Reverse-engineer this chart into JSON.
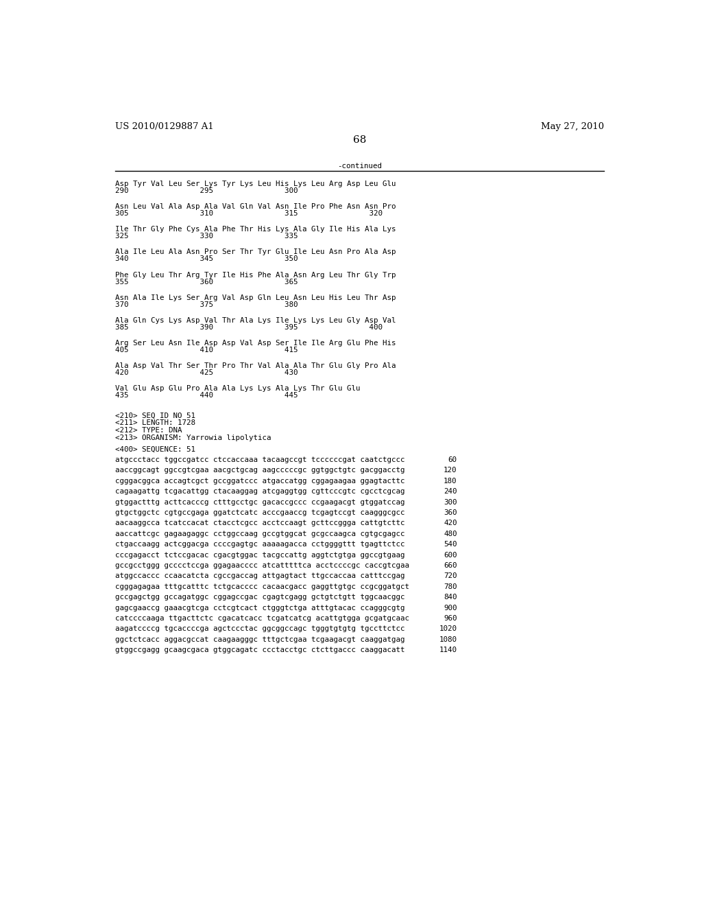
{
  "header_left": "US 2010/0129887 A1",
  "header_right": "May 27, 2010",
  "page_number": "68",
  "continued_label": "-continued",
  "background_color": "#ffffff",
  "text_color": "#000000",
  "font_size_header": 9.5,
  "font_size_body": 7.8,
  "font_size_page": 11,
  "amino_acid_lines": [
    [
      "Asp Tyr Val Leu Ser Lys Tyr Lys Leu His Lys Leu Arg Asp Leu Glu",
      "290                295                300"
    ],
    [
      "Asn Leu Val Ala Asp Ala Val Gln Val Asn Ile Pro Phe Asn Asn Pro",
      "305                310                315                320"
    ],
    [
      "Ile Thr Gly Phe Cys Ala Phe Thr His Lys Ala Gly Ile His Ala Lys",
      "325                330                335"
    ],
    [
      "Ala Ile Leu Ala Asn Pro Ser Thr Tyr Glu Ile Leu Asn Pro Ala Asp",
      "340                345                350"
    ],
    [
      "Phe Gly Leu Thr Arg Tyr Ile His Phe Ala Asn Arg Leu Thr Gly Trp",
      "355                360                365"
    ],
    [
      "Asn Ala Ile Lys Ser Arg Val Asp Gln Leu Asn Leu His Leu Thr Asp",
      "370                375                380"
    ],
    [
      "Ala Gln Cys Lys Asp Val Thr Ala Lys Ile Lys Lys Leu Gly Asp Val",
      "385                390                395                400"
    ],
    [
      "Arg Ser Leu Asn Ile Asp Asp Val Asp Ser Ile Ile Arg Glu Phe His",
      "405                410                415"
    ],
    [
      "Ala Asp Val Thr Ser Thr Pro Thr Val Ala Ala Thr Glu Gly Pro Ala",
      "420                425                430"
    ],
    [
      "Val Glu Asp Glu Pro Ala Ala Lys Lys Ala Lys Thr Glu Glu",
      "435                440                445"
    ]
  ],
  "metadata_lines": [
    "<210> SEQ ID NO 51",
    "<211> LENGTH: 1728",
    "<212> TYPE: DNA",
    "<213> ORGANISM: Yarrowia lipolytica"
  ],
  "sequence_label": "<400> SEQUENCE: 51",
  "dna_lines": [
    [
      "atgccctacc tggccgatcc ctccaccaaa tacaagccgt tccccccgat caatctgccc",
      "60"
    ],
    [
      "aaccggcagt ggccgtcgaa aacgctgcag aagcccccgc ggtggctgtc gacggacctg",
      "120"
    ],
    [
      "cgggacggca accagtcgct gccggatccc atgaccatgg cggagaagaa ggagtacttc",
      "180"
    ],
    [
      "cagaagattg tcgacattgg ctacaaggag atcgaggtgg cgttcccgtc cgcctcgcag",
      "240"
    ],
    [
      "gtggactttg acttcacccg ctttgcctgc gacaccgccc ccgaagacgt gtggatccag",
      "300"
    ],
    [
      "gtgctggctc cgtgccgaga ggatctcatc acccgaaccg tcgagtccgt caagggcgcc",
      "360"
    ],
    [
      "aacaaggcca tcatccacat ctacctcgcc acctccaagt gcttccggga cattgtcttc",
      "420"
    ],
    [
      "aaccattcgc gagaagaggc cctggccaag gccgtggcat gcgccaagca cgtgcgagcc",
      "480"
    ],
    [
      "ctgaccaagg actcggacga ccccgagtgc aaaaagacca cctggggttt tgagttctcc",
      "540"
    ],
    [
      "cccgagacct tctccgacac cgacgtggac tacgccattg aggtctgtga ggccgtgaag",
      "600"
    ],
    [
      "gccgcctggg gcccctccga ggagaacccc atcatttttca acctccccgc caccgtcgaa",
      "660"
    ],
    [
      "atggccaccc ccaacatcta cgccgaccag attgagtact ttgccaccaa catttccgag",
      "720"
    ],
    [
      "cgggagagaa tttgcatttc tctgcacccc cacaacgacc gaggttgtgc ccgcggatgct",
      "780"
    ],
    [
      "gccgagctgg gccagatggc cggagccgac cgagtcgagg gctgtctgtt tggcaacggc",
      "840"
    ],
    [
      "gagcgaaccg gaaacgtcga cctcgtcact ctgggtctga atttgtacac ccagggcgtg",
      "900"
    ],
    [
      "catccccaaga ttgacttctc cgacatcacc tcgatcatcg acattgtgga gcgatgcaac",
      "960"
    ],
    [
      "aagatccccg tgcaccccga agctccctac ggcggccagc tgggtgtgtg tgccttctcc",
      "1020"
    ],
    [
      "ggctctcacc aggacgccat caagaagggc tttgctcgaa tcgaagacgt caaggatgag",
      "1080"
    ],
    [
      "gtggccgagg gcaagcgaca gtggcagatc ccctacctgc ctcttgaccc caaggacatt",
      "1140"
    ]
  ]
}
